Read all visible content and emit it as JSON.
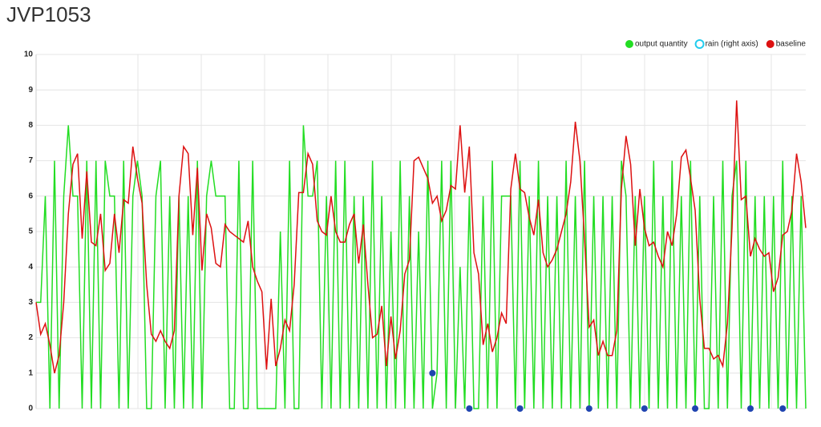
{
  "chart_data": {
    "type": "line",
    "title": "JVP1053",
    "ylim": [
      0,
      10
    ],
    "yticks": [
      0,
      1,
      2,
      3,
      4,
      5,
      6,
      7,
      8,
      9,
      10
    ],
    "y2lim": [
      0,
      10
    ],
    "grid": true,
    "legend": "top-right",
    "series": [
      {
        "name": "output quantity",
        "color": "#22dd22",
        "values": [
          3,
          3,
          6,
          0,
          7,
          0,
          6,
          8,
          6,
          6,
          0,
          7,
          0,
          7,
          0,
          7,
          6,
          6,
          0,
          7,
          0,
          6,
          7,
          6,
          0,
          0,
          6,
          7,
          0,
          6,
          0,
          6,
          0,
          6,
          0,
          7,
          0,
          6,
          7,
          6,
          6,
          6,
          0,
          0,
          7,
          0,
          0,
          7,
          0,
          0,
          0,
          0,
          0,
          5,
          0,
          7,
          0,
          0,
          8,
          6,
          6,
          7,
          0,
          6,
          0,
          7,
          0,
          7,
          0,
          6,
          0,
          6,
          0,
          7,
          0,
          6,
          0,
          5,
          0,
          7,
          0,
          6,
          0,
          5,
          0,
          7,
          0,
          1,
          7,
          0,
          7,
          0,
          4,
          0,
          6,
          0,
          0,
          6,
          0,
          7,
          0,
          6,
          6,
          6,
          0,
          7,
          0,
          6,
          0,
          7,
          0,
          6,
          0,
          6,
          0,
          7,
          0,
          6,
          0,
          7,
          0,
          6,
          0,
          6,
          0,
          6,
          0,
          7,
          6,
          0,
          6,
          0,
          6,
          0,
          7,
          0,
          6,
          0,
          7,
          0,
          6,
          0,
          7,
          0,
          6,
          0,
          0,
          6,
          0,
          7,
          0,
          6,
          7,
          0,
          7,
          0,
          6,
          0,
          6,
          0,
          6,
          0,
          7,
          0,
          6,
          0,
          6,
          0
        ]
      },
      {
        "name": "rain (right axis)",
        "color": "#1f44b0",
        "axis": "y2",
        "values": [
          null,
          null,
          null,
          null,
          null,
          null,
          null,
          null,
          null,
          null,
          null,
          null,
          null,
          null,
          null,
          null,
          null,
          null,
          null,
          null,
          null,
          null,
          null,
          null,
          null,
          null,
          null,
          null,
          null,
          null,
          null,
          null,
          null,
          null,
          null,
          null,
          null,
          null,
          null,
          null,
          null,
          null,
          null,
          null,
          null,
          null,
          null,
          null,
          null,
          null,
          null,
          null,
          null,
          null,
          null,
          null,
          null,
          null,
          null,
          null,
          null,
          null,
          null,
          null,
          null,
          null,
          null,
          null,
          null,
          null,
          null,
          null,
          null,
          null,
          null,
          null,
          null,
          null,
          null,
          null,
          null,
          null,
          null,
          null,
          null,
          null,
          1,
          null,
          null,
          null,
          null,
          null,
          null,
          null,
          0,
          null,
          null,
          null,
          null,
          null,
          null,
          null,
          null,
          null,
          null,
          0,
          null,
          null,
          null,
          null,
          null,
          null,
          null,
          null,
          null,
          null,
          null,
          null,
          null,
          null,
          0,
          null,
          null,
          null,
          null,
          null,
          null,
          null,
          null,
          null,
          null,
          null,
          0,
          null,
          null,
          null,
          null,
          null,
          null,
          null,
          null,
          null,
          null,
          0,
          null,
          null,
          null,
          null,
          null,
          null,
          null,
          null,
          null,
          null,
          null,
          0,
          null,
          null,
          null,
          null,
          null,
          null,
          0,
          null,
          null,
          null,
          null,
          null
        ]
      },
      {
        "name": "baseline",
        "color": "#dd1111",
        "values": [
          3,
          2.1,
          2.4,
          1.8,
          1.0,
          1.5,
          3,
          5.5,
          6.9,
          7.2,
          4.8,
          6.7,
          4.7,
          4.6,
          5.5,
          3.9,
          4.1,
          5.5,
          4.4,
          5.9,
          5.8,
          7.4,
          6.5,
          5.8,
          3.5,
          2.1,
          1.9,
          2.2,
          1.9,
          1.7,
          2.2,
          6,
          7.4,
          7.2,
          4.9,
          6.8,
          3.9,
          5.5,
          5.1,
          4.1,
          4,
          5.2,
          5,
          4.9,
          4.8,
          4.7,
          5.3,
          4,
          3.6,
          3.3,
          1.1,
          3.1,
          1.2,
          1.7,
          2.5,
          2.2,
          3.5,
          6.1,
          6.1,
          7.2,
          6.9,
          5.3,
          5,
          4.9,
          6,
          5,
          4.7,
          4.7,
          5.2,
          5.5,
          4.1,
          5.2,
          3.5,
          2,
          2.1,
          2.9,
          1.2,
          2.6,
          1.4,
          2.2,
          3.8,
          4.2,
          7,
          7.1,
          6.8,
          6.5,
          5.8,
          6,
          5.3,
          5.6,
          6.3,
          6.2,
          8,
          6.1,
          7.4,
          4.4,
          3.8,
          1.8,
          2.4,
          1.6,
          2,
          2.7,
          2.4,
          6.2,
          7.2,
          6.2,
          6.1,
          5.4,
          4.9,
          5.9,
          4.4,
          4,
          4.2,
          4.5,
          5,
          5.5,
          6.4,
          8.1,
          7,
          4.8,
          2.3,
          2.5,
          1.5,
          1.9,
          1.5,
          1.5,
          2.2,
          6.2,
          7.7,
          6.9,
          4.6,
          6.2,
          5.1,
          4.6,
          4.7,
          4.3,
          4,
          5,
          4.6,
          5.5,
          7.1,
          7.3,
          6.5,
          5.6,
          3.1,
          1.7,
          1.7,
          1.4,
          1.5,
          1.2,
          2.4,
          5.1,
          8.7,
          5.9,
          6,
          4.3,
          4.8,
          4.5,
          4.3,
          4.4,
          3.3,
          3.7,
          4.9,
          5,
          5.6,
          7.2,
          6.4,
          5.1
        ]
      }
    ]
  }
}
